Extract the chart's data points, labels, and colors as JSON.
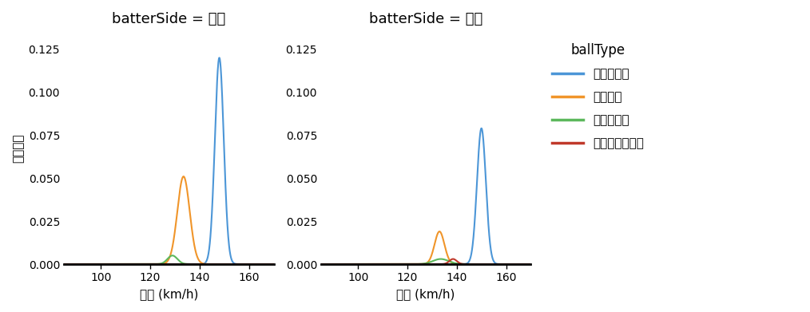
{
  "title_left": "batterSide = 左打",
  "title_right": "batterSide = 右打",
  "xlabel": "球速 (km/h)",
  "ylabel": "確率密度",
  "legend_title": "ballType",
  "legend_entries": [
    "ストレート",
    "フォーク",
    "スライダー",
    "チェンジアップ"
  ],
  "colors": [
    "#4C96D7",
    "#F0952A",
    "#5CB85C",
    "#C0392B"
  ],
  "xlim": [
    85,
    170
  ],
  "xticks": [
    100,
    120,
    140,
    160
  ],
  "ylim": [
    0,
    0.135
  ],
  "yticks": [
    0.0,
    0.025,
    0.05,
    0.075,
    0.1,
    0.125
  ],
  "left_peaks": {
    "straight": {
      "mean": 148.0,
      "std": 1.8,
      "peak": 0.12
    },
    "fork": {
      "mean": 133.5,
      "std": 2.5,
      "peak": 0.051
    },
    "slider": {
      "mean": 129.0,
      "std": 2.0,
      "peak": 0.005
    },
    "change": {
      "mean": 138.0,
      "std": 2.0,
      "peak": 0.0
    }
  },
  "right_peaks": {
    "straight": {
      "mean": 150.0,
      "std": 1.8,
      "peak": 0.079
    },
    "fork": {
      "mean": 133.0,
      "std": 2.0,
      "peak": 0.019
    },
    "slider": {
      "mean": 133.5,
      "std": 3.2,
      "peak": 0.003
    },
    "change": {
      "mean": 138.5,
      "std": 1.5,
      "peak": 0.003
    }
  },
  "background_color": "#ffffff",
  "spine_color": "#000000",
  "figsize": [
    10.14,
    3.91
  ],
  "dpi": 100
}
